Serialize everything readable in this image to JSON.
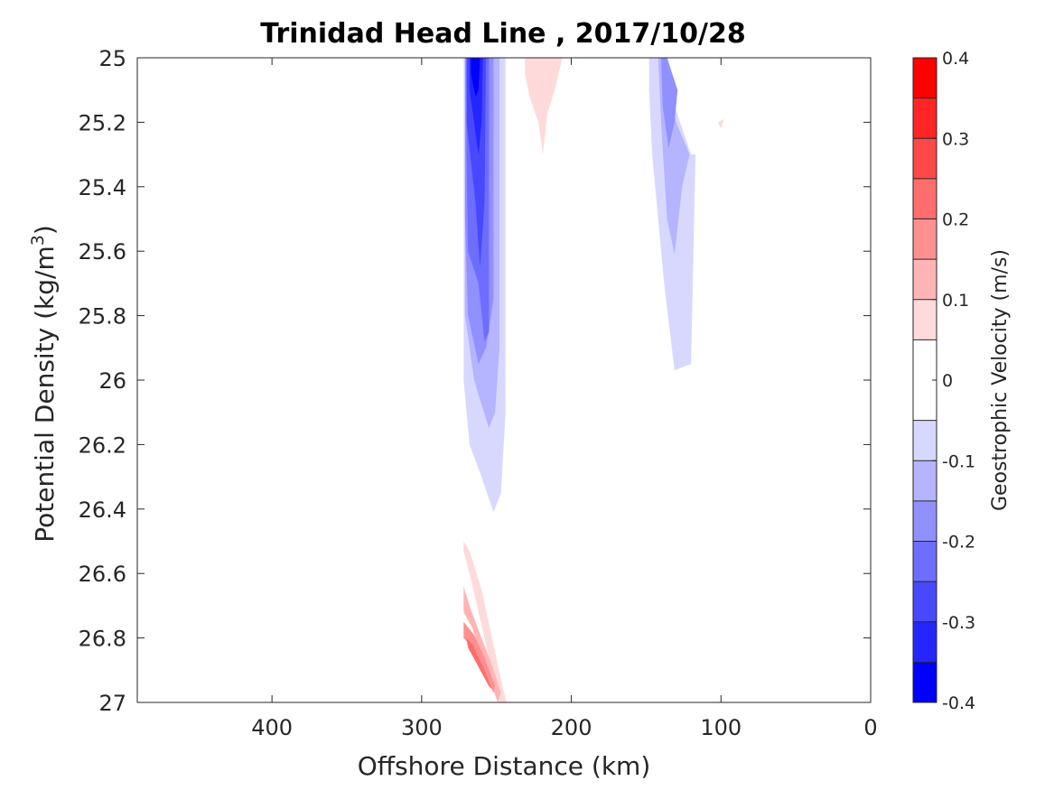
{
  "chart_data": {
    "type": "contourf",
    "title": "Trinidad Head Line , 2017/10/28",
    "xlabel": "Offshore Distance (km)",
    "ylabel_main": "Potential Density (kg/m",
    "ylabel_sup": "3",
    "ylabel_close": ")",
    "xlim": [
      490,
      0
    ],
    "x_reversed": true,
    "ylim": [
      25,
      27
    ],
    "y_reversed": true,
    "xticks": [
      "400",
      "300",
      "200",
      "100",
      "0"
    ],
    "xtick_values": [
      400,
      300,
      200,
      100,
      0
    ],
    "yticks": [
      "25",
      "25.2",
      "25.4",
      "25.6",
      "25.8",
      "26",
      "26.2",
      "26.4",
      "26.6",
      "26.8",
      "27"
    ],
    "ytick_values": [
      25,
      25.2,
      25.4,
      25.6,
      25.8,
      26,
      26.2,
      26.4,
      26.6,
      26.8,
      27
    ],
    "colorbar": {
      "label": "Geostrophic Velocity (m/s)",
      "range": [
        -0.4,
        0.4
      ],
      "ticks": [
        "0.4",
        "0.3",
        "0.2",
        "0.1",
        "0",
        "-0.1",
        "-0.2",
        "-0.3",
        "-0.4"
      ],
      "tick_values": [
        0.4,
        0.3,
        0.2,
        0.1,
        0,
        -0.1,
        -0.2,
        -0.3,
        -0.4
      ],
      "levels": [
        -0.4,
        -0.35,
        -0.3,
        -0.25,
        -0.2,
        -0.15,
        -0.1,
        -0.05,
        0.05,
        0.1,
        0.15,
        0.2,
        0.25,
        0.3,
        0.35,
        0.4
      ],
      "colors": [
        "#0000ff",
        "#2525ff",
        "#4848ff",
        "#6d6dff",
        "#9090ff",
        "#b4b4ff",
        "#d8d8ff",
        "#ffffff",
        "#ffdada",
        "#ffb5b5",
        "#ff9090",
        "#ff6d6d",
        "#ff4848",
        "#ff2525",
        "#ff0000"
      ]
    },
    "regions": [
      {
        "name": "offshore-jet-weak",
        "value": -0.075,
        "color": "#d8d8ff",
        "points": [
          [
            272,
            25
          ],
          [
            244,
            25
          ],
          [
            244,
            26.1
          ],
          [
            247,
            26.35
          ],
          [
            252,
            26.41
          ],
          [
            260,
            26.3
          ],
          [
            268,
            26.2
          ],
          [
            272,
            26.0
          ]
        ]
      },
      {
        "name": "offshore-jet-mid",
        "value": -0.125,
        "color": "#b4b4ff",
        "points": [
          [
            271,
            25
          ],
          [
            248,
            25
          ],
          [
            248,
            25.9
          ],
          [
            251,
            26.1
          ],
          [
            255,
            26.15
          ],
          [
            265,
            26.0
          ],
          [
            271,
            25.8
          ]
        ]
      },
      {
        "name": "offshore-jet-strong",
        "value": -0.175,
        "color": "#9090ff",
        "points": [
          [
            271,
            25
          ],
          [
            252,
            25
          ],
          [
            252,
            25.75
          ],
          [
            257,
            25.9
          ],
          [
            262,
            25.95
          ],
          [
            269,
            25.8
          ],
          [
            271,
            25.5
          ]
        ]
      },
      {
        "name": "offshore-jet-stronger",
        "value": -0.225,
        "color": "#6d6dff",
        "points": [
          [
            270,
            25
          ],
          [
            255,
            25
          ],
          [
            255,
            25.85
          ],
          [
            258,
            25.88
          ],
          [
            262,
            25.7
          ],
          [
            269,
            25.6
          ],
          [
            270,
            25.3
          ]
        ]
      },
      {
        "name": "offshore-jet-core-a",
        "value": -0.275,
        "color": "#4848ff",
        "points": [
          [
            270,
            25
          ],
          [
            257,
            25
          ],
          [
            258,
            25.45
          ],
          [
            261,
            25.65
          ],
          [
            264,
            25.45
          ],
          [
            270,
            25.2
          ]
        ]
      },
      {
        "name": "offshore-jet-core-b",
        "value": -0.325,
        "color": "#2525ff",
        "points": [
          [
            268,
            25
          ],
          [
            259,
            25
          ],
          [
            260,
            25.2
          ],
          [
            262,
            25.3
          ],
          [
            265,
            25.2
          ],
          [
            268,
            25.1
          ]
        ]
      },
      {
        "name": "offshore-jet-core-c",
        "value": -0.375,
        "color": "#0000ff",
        "points": [
          [
            267,
            25
          ],
          [
            261,
            25
          ],
          [
            262,
            25.1
          ],
          [
            264,
            25.12
          ],
          [
            267,
            25.05
          ]
        ]
      },
      {
        "name": "nearshore-weak",
        "value": -0.075,
        "color": "#d8d8ff",
        "points": [
          [
            148,
            25
          ],
          [
            142,
            25
          ],
          [
            120,
            25.3
          ],
          [
            117,
            25.3
          ],
          [
            120,
            25.95
          ],
          [
            131,
            25.97
          ],
          [
            138,
            25.7
          ],
          [
            146,
            25.3
          ],
          [
            148,
            25.1
          ]
        ]
      },
      {
        "name": "nearshore-mid",
        "value": -0.125,
        "color": "#b4b4ff",
        "points": [
          [
            142,
            25
          ],
          [
            138,
            25
          ],
          [
            130,
            25.2
          ],
          [
            121,
            25.3
          ],
          [
            126,
            25.4
          ],
          [
            131,
            25.61
          ],
          [
            136,
            25.5
          ],
          [
            140,
            25.2
          ]
        ]
      },
      {
        "name": "nearshore-strong",
        "value": -0.175,
        "color": "#9090ff",
        "points": [
          [
            140,
            25
          ],
          [
            136,
            25
          ],
          [
            129,
            25.1
          ],
          [
            131,
            25.2
          ],
          [
            135,
            25.28
          ],
          [
            139,
            25.15
          ]
        ]
      },
      {
        "name": "surface-positive",
        "value": 0.075,
        "color": "#ffdada",
        "points": [
          [
            231,
            25
          ],
          [
            206,
            25
          ],
          [
            211,
            25.1
          ],
          [
            216,
            25.17
          ],
          [
            219,
            25.3
          ],
          [
            222,
            25.2
          ],
          [
            228,
            25.12
          ],
          [
            231,
            25.05
          ]
        ]
      },
      {
        "name": "small-positive",
        "value": 0.075,
        "color": "#ffdada",
        "points": [
          [
            102,
            25.2
          ],
          [
            98,
            25.19
          ],
          [
            100,
            25.22
          ]
        ]
      },
      {
        "name": "deep-positive-weak",
        "value": 0.075,
        "color": "#ffdada",
        "points": [
          [
            272,
            26.5
          ],
          [
            268,
            26.53
          ],
          [
            260,
            26.65
          ],
          [
            253,
            26.8
          ],
          [
            245,
            26.97
          ],
          [
            243,
            27
          ],
          [
            248,
            27
          ],
          [
            258,
            26.8
          ],
          [
            268,
            26.6
          ],
          [
            272,
            26.53
          ]
        ]
      },
      {
        "name": "deep-positive-mid",
        "value": 0.125,
        "color": "#ffb5b5",
        "points": [
          [
            272,
            26.64
          ],
          [
            268,
            26.7
          ],
          [
            260,
            26.8
          ],
          [
            254,
            26.87
          ],
          [
            247,
            26.97
          ],
          [
            249,
            27
          ],
          [
            256,
            26.92
          ],
          [
            266,
            26.77
          ],
          [
            272,
            26.72
          ]
        ]
      },
      {
        "name": "deep-positive-strong",
        "value": 0.175,
        "color": "#ff9090",
        "points": [
          [
            272,
            26.75
          ],
          [
            265,
            26.79
          ],
          [
            258,
            26.86
          ],
          [
            251,
            26.95
          ],
          [
            252,
            26.97
          ],
          [
            259,
            26.9
          ],
          [
            268,
            26.82
          ],
          [
            272,
            26.8
          ]
        ]
      },
      {
        "name": "deep-positive-core",
        "value": 0.225,
        "color": "#ff6d6d",
        "points": [
          [
            270,
            26.8
          ],
          [
            266,
            26.82
          ],
          [
            258,
            26.9
          ],
          [
            253,
            26.96
          ],
          [
            255,
            26.95
          ],
          [
            262,
            26.89
          ],
          [
            269,
            26.83
          ]
        ]
      }
    ]
  }
}
